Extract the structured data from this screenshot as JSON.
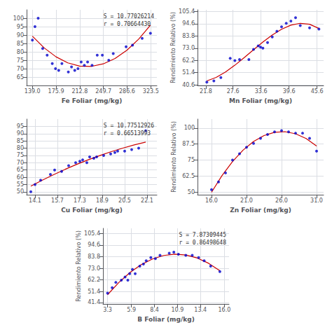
{
  "chart_data": [
    {
      "type": "scatter",
      "xlabel": "Fe Foliar (mg/kg)",
      "annotation": "S = 10.77026214\nr = 0.70664430",
      "xlim": [
        130,
        333
      ],
      "xticks": [
        {
          "value": 139,
          "label": "139.0"
        },
        175.9,
        212.8,
        249.7,
        286.6,
        323.5
      ],
      "ylim": [
        60,
        105
      ],
      "yticks": [
        65,
        70,
        75,
        80,
        85,
        90,
        95,
        100
      ],
      "grid": true,
      "series": [
        {
          "type": "scatter",
          "color": "#0000cc",
          "x": [
            139,
            143,
            148,
            155,
            162,
            170,
            175,
            180,
            185,
            195,
            200,
            205,
            210,
            215,
            220,
            225,
            232,
            240,
            248,
            258,
            265,
            285,
            295,
            310,
            323
          ],
          "values": [
            87,
            95,
            100,
            82,
            78,
            73,
            70,
            69,
            73,
            68,
            71,
            69,
            70,
            74,
            72,
            74,
            72,
            78,
            78,
            75,
            79,
            83,
            84,
            88,
            91
          ]
        },
        {
          "type": "line",
          "color": "#cc0000",
          "x": [
            139,
            157.4,
            175.8,
            194.2,
            212.6,
            231,
            249.4,
            267.8,
            286.2,
            304.6,
            323
          ],
          "values": [
            89.35,
            82.35,
            77.04,
            73.44,
            71.54,
            71.34,
            72.84,
            76.05,
            80.95,
            87.56,
            95.87
          ]
        }
      ]
    },
    {
      "type": "scatter",
      "xlabel": "Mn Foliar (mg/kg)",
      "ylabel": "Rendimiento Relativo (%)",
      "xlim": [
        20,
        47
      ],
      "xticks": [
        21.8,
        27.6,
        33.6,
        39.6,
        45.6
      ],
      "ylim": [
        40,
        107
      ],
      "yticks": [
        40.6,
        51.4,
        62.2,
        {
          "value": 73,
          "label": "73.0"
        },
        83.8,
        94.6,
        105.4
      ],
      "grid": true,
      "series": [
        {
          "type": "scatter",
          "color": "#0000cc",
          "x": [
            22,
            23.5,
            25,
            27,
            28,
            29,
            31,
            32,
            33,
            33.5,
            34,
            35,
            36,
            37,
            38,
            39,
            40,
            41,
            42,
            44,
            46
          ],
          "values": [
            43,
            44,
            47,
            64,
            62,
            63,
            63,
            72,
            75,
            74,
            73,
            78,
            83,
            88,
            92,
            95,
            97,
            100,
            93,
            91,
            90
          ]
        },
        {
          "type": "line",
          "color": "#cc0000",
          "x": [
            22,
            24,
            26,
            28,
            30,
            32,
            34,
            36,
            38,
            40,
            42,
            44,
            46
          ],
          "values": [
            44.01,
            47.16,
            51.95,
            57.93,
            64.65,
            71.66,
            78.49,
            84.7,
            89.83,
            93.43,
            95.04,
            94.21,
            90.48
          ]
        }
      ]
    },
    {
      "type": "scatter",
      "xlabel": "Cu Foliar (mg/kg)",
      "annotation": "S = 10.77512926\nr = 0.66513993",
      "xlim": [
        13.5,
        22.8
      ],
      "xticks": [
        14.1,
        15.7,
        17.3,
        18.9,
        20.5,
        22.1
      ],
      "ylim": [
        48,
        100
      ],
      "yticks": [
        50,
        55,
        60,
        65,
        70,
        75,
        80,
        85,
        90,
        95
      ],
      "grid": true,
      "series": [
        {
          "type": "scatter",
          "color": "#0000cc",
          "x": [
            13.8,
            14.1,
            14.5,
            15.2,
            15.5,
            16.0,
            16.5,
            17.0,
            17.3,
            17.5,
            17.8,
            18.0,
            18.3,
            18.5,
            19.0,
            19.5,
            19.8,
            20.0,
            20.5,
            21.0,
            21.5,
            22.0
          ],
          "values": [
            50,
            55,
            58,
            62,
            65,
            64,
            68,
            70,
            71,
            72,
            70,
            74,
            73,
            74,
            75,
            76,
            77,
            78,
            78,
            79,
            80,
            92
          ]
        },
        {
          "type": "line",
          "color": "#cc0000",
          "x": [
            13.8,
            14.62,
            15.44,
            16.26,
            17.08,
            17.9,
            18.72,
            19.54,
            20.36,
            21.18,
            22.0
          ],
          "values": [
            53.9,
            58.0,
            61.87,
            65.49,
            68.87,
            72.02,
            74.92,
            77.59,
            80.02,
            82.21,
            84.16
          ]
        }
      ]
    },
    {
      "type": "scatter",
      "xlabel": "Zn Foliar (mg/kg)",
      "ylabel": "Rendimiento Relativo (%)",
      "xlim": [
        14,
        32
      ],
      "xticks": [
        {
          "value": 16,
          "label": "16.0"
        },
        {
          "value": 21,
          "label": "21.0"
        },
        {
          "value": 26,
          "label": "26.0"
        },
        {
          "value": 31,
          "label": "31.0"
        }
      ],
      "ylim": [
        48,
        107
      ],
      "yticks": [
        50,
        62.5,
        75,
        87.5,
        100
      ],
      "grid": true,
      "series": [
        {
          "type": "scatter",
          "color": "#0000cc",
          "x": [
            16,
            17,
            18,
            19,
            20,
            21,
            22,
            23,
            24,
            25,
            26,
            27,
            28,
            29,
            30,
            31
          ],
          "values": [
            52,
            58,
            65,
            75,
            80,
            85,
            88,
            92,
            95,
            97,
            98,
            97,
            96,
            96,
            92,
            82
          ]
        },
        {
          "type": "line",
          "color": "#cc0000",
          "x": [
            16,
            17.5,
            19,
            20.5,
            22,
            23.5,
            25,
            26.5,
            28,
            29.5,
            31
          ],
          "values": [
            49.89,
            62.94,
            73.89,
            82.74,
            89.5,
            94.15,
            96.71,
            97.18,
            95.54,
            91.81,
            85.98
          ]
        }
      ]
    },
    {
      "type": "scatter",
      "xlabel": "B Foliar (mg/kg)",
      "ylabel": "Rendimiento Relativo (%)",
      "annotation": "S = 7.87309445\nr = 0.86498648",
      "xlim": [
        2.8,
        16.5
      ],
      "xticks": [
        3.3,
        5.9,
        8.4,
        10.9,
        13.4,
        {
          "value": 16,
          "label": "16.0"
        }
      ],
      "ylim": [
        40,
        110
      ],
      "yticks": [
        41.4,
        51.4,
        62.2,
        {
          "value": 73,
          "label": "73.0"
        },
        83.8,
        94.6,
        105.4
      ],
      "grid": true,
      "series": [
        {
          "type": "scatter",
          "color": "#0000cc",
          "x": [
            3.3,
            3.8,
            4.2,
            4.8,
            5.2,
            5.5,
            5.7,
            6.0,
            6.3,
            6.8,
            7.2,
            7.5,
            8.0,
            8.5,
            9.0,
            10.0,
            10.5,
            11.0,
            11.8,
            12.5,
            13.2,
            13.8,
            14.5,
            15.5
          ],
          "values": [
            50,
            55,
            60,
            62,
            65,
            62,
            68,
            72,
            68,
            75,
            77,
            80,
            83,
            82,
            85,
            87,
            88,
            86,
            85,
            85,
            83,
            80,
            75,
            70
          ]
        },
        {
          "type": "line",
          "color": "#cc0000",
          "x": [
            3.3,
            4.52,
            5.74,
            6.96,
            8.18,
            9.4,
            10.62,
            11.84,
            13.06,
            14.28,
            15.5
          ],
          "values": [
            48.58,
            59.87,
            69.15,
            76.41,
            81.66,
            84.89,
            86.11,
            85.3,
            82.49,
            77.66,
            70.81
          ]
        }
      ]
    }
  ]
}
